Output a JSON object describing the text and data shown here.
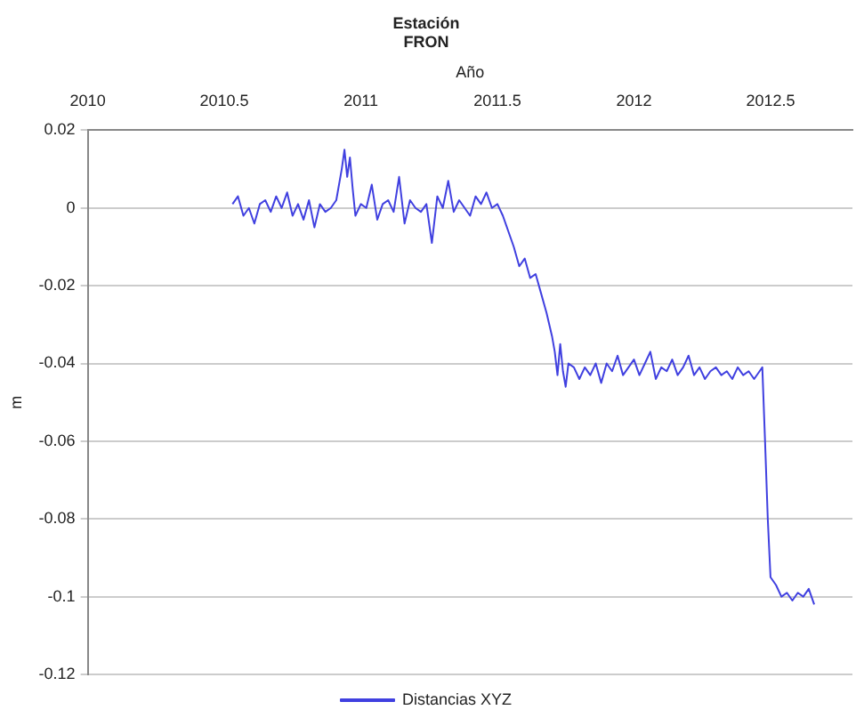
{
  "chart_data": {
    "type": "line",
    "title": "Estación",
    "subtitle": "FRON",
    "xlabel": "Año",
    "ylabel": "m",
    "xlim": [
      2010,
      2012.8
    ],
    "xticks": [
      2010,
      2010.5,
      2011,
      2011.5,
      2012,
      2012.5
    ],
    "ylim": [
      -0.12,
      0.02
    ],
    "yticks": [
      -0.12,
      -0.1,
      -0.08,
      -0.06,
      -0.04,
      -0.02,
      0,
      0.02
    ],
    "grid": "y",
    "legend": "bottom",
    "marker": "none",
    "line_style": "solid",
    "series": [
      {
        "name": "Distancias XYZ",
        "color": "#4040e0",
        "x": [
          2010.53,
          2010.55,
          2010.57,
          2010.59,
          2010.61,
          2010.63,
          2010.65,
          2010.67,
          2010.69,
          2010.71,
          2010.73,
          2010.75,
          2010.77,
          2010.79,
          2010.81,
          2010.83,
          2010.85,
          2010.87,
          2010.89,
          2010.91,
          2010.93,
          2010.94,
          2010.95,
          2010.96,
          2010.97,
          2010.98,
          2011.0,
          2011.02,
          2011.04,
          2011.06,
          2011.08,
          2011.1,
          2011.12,
          2011.14,
          2011.16,
          2011.18,
          2011.2,
          2011.22,
          2011.24,
          2011.26,
          2011.28,
          2011.3,
          2011.32,
          2011.34,
          2011.36,
          2011.38,
          2011.4,
          2011.42,
          2011.44,
          2011.46,
          2011.48,
          2011.5,
          2011.52,
          2011.54,
          2011.56,
          2011.58,
          2011.6,
          2011.62,
          2011.64,
          2011.66,
          2011.68,
          2011.7,
          2011.71,
          2011.72,
          2011.73,
          2011.74,
          2011.75,
          2011.76,
          2011.78,
          2011.8,
          2011.82,
          2011.84,
          2011.86,
          2011.88,
          2011.9,
          2011.92,
          2011.94,
          2011.96,
          2011.98,
          2012.0,
          2012.02,
          2012.04,
          2012.06,
          2012.08,
          2012.1,
          2012.12,
          2012.14,
          2012.16,
          2012.18,
          2012.2,
          2012.22,
          2012.24,
          2012.26,
          2012.28,
          2012.3,
          2012.32,
          2012.34,
          2012.36,
          2012.38,
          2012.4,
          2012.42,
          2012.44,
          2012.46,
          2012.47,
          2012.48,
          2012.49,
          2012.5,
          2012.52,
          2012.54,
          2012.56,
          2012.58,
          2012.6,
          2012.62,
          2012.64,
          2012.66
        ],
        "values": [
          0.001,
          0.003,
          -0.002,
          0.0,
          -0.004,
          0.001,
          0.002,
          -0.001,
          0.003,
          0.0,
          0.004,
          -0.002,
          0.001,
          -0.003,
          0.002,
          -0.005,
          0.001,
          -0.001,
          0.0,
          0.002,
          0.01,
          0.015,
          0.008,
          0.013,
          0.005,
          -0.002,
          0.001,
          0.0,
          0.006,
          -0.003,
          0.001,
          0.002,
          -0.001,
          0.008,
          -0.004,
          0.002,
          0.0,
          -0.001,
          0.001,
          -0.009,
          0.003,
          0.0,
          0.007,
          -0.001,
          0.002,
          0.0,
          -0.002,
          0.003,
          0.001,
          0.004,
          0.0,
          0.001,
          -0.002,
          -0.006,
          -0.01,
          -0.015,
          -0.013,
          -0.018,
          -0.017,
          -0.022,
          -0.027,
          -0.033,
          -0.037,
          -0.043,
          -0.035,
          -0.042,
          -0.046,
          -0.04,
          -0.041,
          -0.044,
          -0.041,
          -0.043,
          -0.04,
          -0.045,
          -0.04,
          -0.042,
          -0.038,
          -0.043,
          -0.041,
          -0.039,
          -0.043,
          -0.04,
          -0.037,
          -0.044,
          -0.041,
          -0.042,
          -0.039,
          -0.043,
          -0.041,
          -0.038,
          -0.043,
          -0.041,
          -0.044,
          -0.042,
          -0.041,
          -0.043,
          -0.042,
          -0.044,
          -0.041,
          -0.043,
          -0.042,
          -0.044,
          -0.042,
          -0.041,
          -0.06,
          -0.08,
          -0.095,
          -0.097,
          -0.1,
          -0.099,
          -0.101,
          -0.099,
          -0.1,
          -0.098,
          -0.102
        ]
      }
    ]
  }
}
